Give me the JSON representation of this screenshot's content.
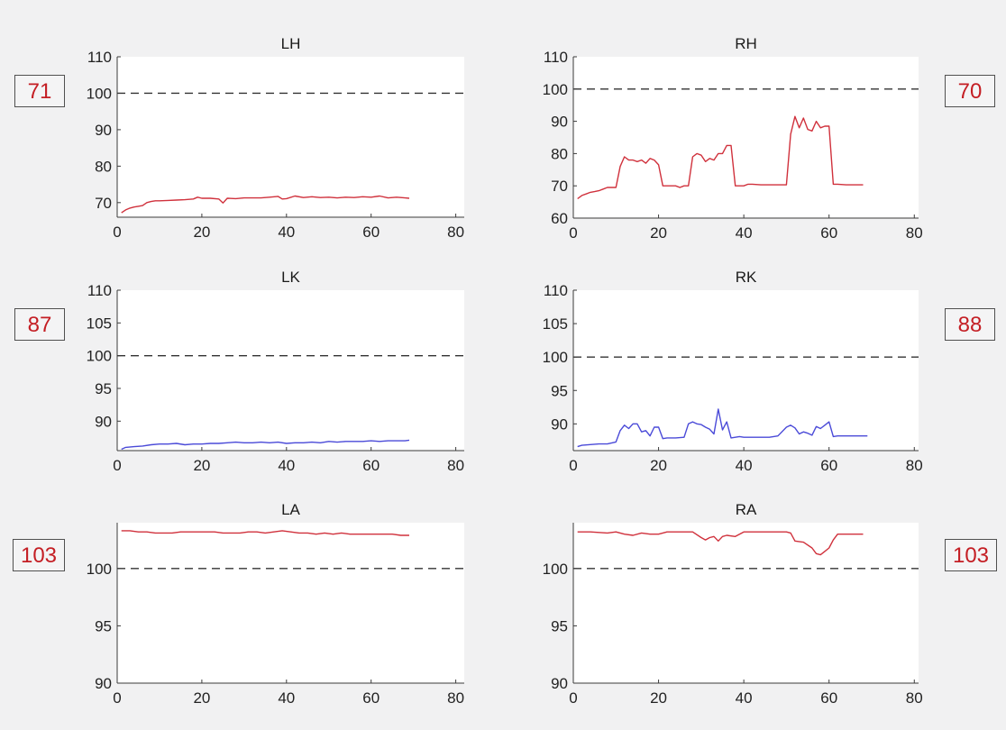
{
  "colors": {
    "background": "#f1f1f2",
    "plot_bg": "#ffffff",
    "red_series": "#d0313c",
    "blue_series": "#4a4ad8",
    "reference_line": "#333333",
    "badge_text": "#c41e24"
  },
  "badges": {
    "lh": "71",
    "rh": "70",
    "lk": "87",
    "rk": "88",
    "la": "103",
    "ra": "103"
  },
  "chart_data": [
    {
      "type": "line",
      "title": "LH",
      "xlabel": "",
      "ylabel": "",
      "xlim": [
        0,
        82
      ],
      "ylim": [
        66,
        110
      ],
      "xticks": [
        0,
        20,
        40,
        60,
        80
      ],
      "yticks": [
        70,
        80,
        90,
        100,
        110
      ],
      "reference": 100,
      "color": "red",
      "series": [
        {
          "x": [
            1,
            2,
            3,
            4,
            5,
            6,
            7,
            8,
            9,
            10,
            12,
            14,
            16,
            18,
            19,
            20,
            22,
            24,
            25,
            26,
            28,
            30,
            32,
            34,
            36,
            38,
            39,
            40,
            42,
            44,
            46,
            48,
            50,
            52,
            54,
            56,
            58,
            60,
            62,
            64,
            66,
            68,
            69
          ],
          "y": [
            67.2,
            68,
            68.5,
            68.8,
            69,
            69.2,
            70,
            70.3,
            70.5,
            70.5,
            70.6,
            70.7,
            70.8,
            71,
            71.5,
            71.2,
            71.2,
            71.0,
            69.9,
            71.2,
            71.1,
            71.3,
            71.3,
            71.3,
            71.5,
            71.7,
            71.0,
            71.1,
            71.8,
            71.4,
            71.6,
            71.4,
            71.5,
            71.3,
            71.5,
            71.4,
            71.6,
            71.5,
            71.8,
            71.3,
            71.5,
            71.3,
            71.2
          ]
        }
      ]
    },
    {
      "type": "line",
      "title": "RH",
      "xlabel": "",
      "ylabel": "",
      "xlim": [
        0,
        81
      ],
      "ylim": [
        60,
        110
      ],
      "xticks": [
        0,
        20,
        40,
        60,
        80
      ],
      "yticks": [
        60,
        70,
        80,
        90,
        100,
        110
      ],
      "reference": 100,
      "color": "red",
      "series": [
        {
          "x": [
            1,
            2,
            3,
            4,
            5,
            6,
            7,
            8,
            9,
            10,
            11,
            12,
            13,
            14,
            15,
            16,
            17,
            18,
            19,
            20,
            21,
            22,
            23,
            24,
            25,
            26,
            27,
            28,
            29,
            30,
            31,
            32,
            33,
            34,
            35,
            36,
            37,
            38,
            39,
            40,
            41,
            42,
            44,
            46,
            48,
            50,
            51,
            52,
            53,
            54,
            55,
            56,
            57,
            58,
            59,
            60,
            61,
            62,
            64,
            66,
            68
          ],
          "y": [
            66,
            67,
            67.5,
            68,
            68.2,
            68.5,
            69,
            69.5,
            69.5,
            69.5,
            76,
            79,
            78,
            78,
            77.5,
            78,
            77,
            78.5,
            78,
            76.5,
            70,
            70,
            70,
            70,
            69.5,
            70,
            70,
            79,
            80,
            79.5,
            77.5,
            78.5,
            78,
            80,
            80,
            82.5,
            82.5,
            70,
            70,
            70,
            70.5,
            70.5,
            70.3,
            70.3,
            70.3,
            70.3,
            86,
            91.5,
            88,
            91,
            87.5,
            87,
            90,
            88,
            88.5,
            88.5,
            70.5,
            70.5,
            70.3,
            70.3,
            70.3
          ]
        }
      ]
    },
    {
      "type": "line",
      "title": "LK",
      "xlabel": "",
      "ylabel": "",
      "xlim": [
        0,
        82
      ],
      "ylim": [
        85.5,
        110
      ],
      "xticks": [
        0,
        20,
        40,
        60,
        80
      ],
      "yticks": [
        90,
        95,
        100,
        105,
        110
      ],
      "reference": 100,
      "color": "blue",
      "series": [
        {
          "x": [
            1,
            2,
            4,
            6,
            8,
            10,
            12,
            14,
            16,
            18,
            20,
            22,
            24,
            26,
            28,
            30,
            32,
            34,
            36,
            38,
            40,
            42,
            44,
            46,
            48,
            50,
            52,
            54,
            56,
            58,
            60,
            62,
            64,
            66,
            68,
            69
          ],
          "y": [
            85.7,
            86,
            86.1,
            86.2,
            86.4,
            86.5,
            86.5,
            86.6,
            86.4,
            86.5,
            86.5,
            86.6,
            86.6,
            86.7,
            86.8,
            86.7,
            86.7,
            86.8,
            86.7,
            86.8,
            86.6,
            86.7,
            86.7,
            86.8,
            86.7,
            86.9,
            86.8,
            86.9,
            86.9,
            86.9,
            87,
            86.9,
            87,
            87,
            87,
            87.1
          ]
        }
      ]
    },
    {
      "type": "line",
      "title": "RK",
      "xlabel": "",
      "ylabel": "",
      "xlim": [
        0,
        81
      ],
      "ylim": [
        86,
        110
      ],
      "xticks": [
        0,
        20,
        40,
        60,
        80
      ],
      "yticks": [
        90,
        95,
        100,
        105,
        110
      ],
      "reference": 100,
      "color": "blue",
      "series": [
        {
          "x": [
            1,
            2,
            4,
            6,
            8,
            10,
            11,
            12,
            13,
            14,
            15,
            16,
            17,
            18,
            19,
            20,
            21,
            22,
            24,
            26,
            27,
            28,
            29,
            30,
            31,
            32,
            33,
            34,
            35,
            36,
            37,
            38,
            39,
            40,
            42,
            44,
            46,
            48,
            50,
            51,
            52,
            53,
            54,
            55,
            56,
            57,
            58,
            59,
            60,
            61,
            62,
            64,
            66,
            68,
            69
          ],
          "y": [
            86.6,
            86.8,
            86.9,
            87,
            87,
            87.3,
            89,
            89.8,
            89.3,
            90,
            90,
            88.8,
            89,
            88.2,
            89.5,
            89.5,
            87.8,
            87.9,
            87.9,
            88,
            90,
            90.3,
            90,
            89.9,
            89.5,
            89.2,
            88.5,
            92.2,
            89.1,
            90.3,
            87.9,
            88,
            88.1,
            88,
            88,
            88,
            88,
            88.2,
            89.5,
            89.8,
            89.4,
            88.5,
            88.8,
            88.6,
            88.3,
            89.6,
            89.3,
            89.8,
            90.3,
            88.1,
            88.2,
            88.2,
            88.2,
            88.2,
            88.2
          ]
        }
      ]
    },
    {
      "type": "line",
      "title": "LA",
      "xlabel": "",
      "ylabel": "",
      "xlim": [
        0,
        82
      ],
      "ylim": [
        90,
        104
      ],
      "xticks": [
        0,
        20,
        40,
        60,
        80
      ],
      "yticks": [
        90,
        95,
        100
      ],
      "reference": 100,
      "color": "red",
      "series": [
        {
          "x": [
            1,
            3,
            5,
            7,
            9,
            11,
            13,
            15,
            17,
            19,
            21,
            23,
            25,
            27,
            29,
            31,
            33,
            35,
            37,
            39,
            41,
            43,
            45,
            47,
            49,
            51,
            53,
            55,
            57,
            59,
            61,
            63,
            65,
            67,
            69
          ],
          "y": [
            103.3,
            103.3,
            103.2,
            103.2,
            103.1,
            103.1,
            103.1,
            103.2,
            103.2,
            103.2,
            103.2,
            103.2,
            103.1,
            103.1,
            103.1,
            103.2,
            103.2,
            103.1,
            103.2,
            103.3,
            103.2,
            103.1,
            103.1,
            103,
            103.1,
            103,
            103.1,
            103,
            103,
            103,
            103,
            103,
            103,
            102.9,
            102.9
          ]
        }
      ]
    },
    {
      "type": "line",
      "title": "RA",
      "xlabel": "",
      "ylabel": "",
      "xlim": [
        0,
        81
      ],
      "ylim": [
        90,
        104
      ],
      "xticks": [
        0,
        20,
        40,
        60,
        80
      ],
      "yticks": [
        90,
        95,
        100
      ],
      "reference": 100,
      "color": "red",
      "series": [
        {
          "x": [
            1,
            4,
            8,
            10,
            12,
            14,
            16,
            18,
            20,
            22,
            24,
            26,
            28,
            30,
            31,
            32,
            33,
            34,
            35,
            36,
            38,
            40,
            42,
            44,
            46,
            48,
            50,
            51,
            52,
            54,
            56,
            57,
            58,
            59,
            60,
            61,
            62,
            64,
            66,
            68
          ],
          "y": [
            103.2,
            103.2,
            103.1,
            103.2,
            103,
            102.9,
            103.1,
            103,
            103,
            103.2,
            103.2,
            103.2,
            103.2,
            102.7,
            102.5,
            102.7,
            102.8,
            102.4,
            102.8,
            102.9,
            102.8,
            103.2,
            103.2,
            103.2,
            103.2,
            103.2,
            103.2,
            103.1,
            102.4,
            102.3,
            101.8,
            101.3,
            101.2,
            101.5,
            101.8,
            102.5,
            103,
            103,
            103,
            103
          ]
        }
      ]
    }
  ]
}
